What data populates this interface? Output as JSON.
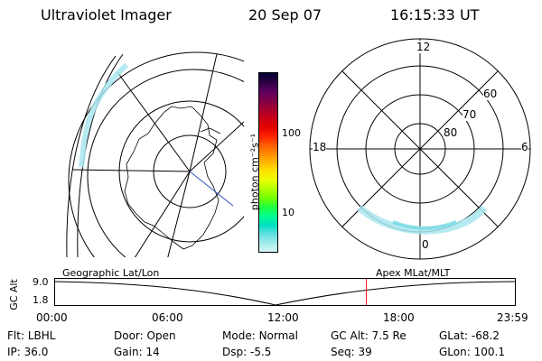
{
  "header": {
    "title": "Ultraviolet Imager",
    "date": "20 Sep 07",
    "time": "16:15:33 UT"
  },
  "colorbar": {
    "label": "photon cm⁻²s⁻¹",
    "ticks": [
      "100",
      "10"
    ],
    "colors": [
      "#000033",
      "#2a0040",
      "#5a0060",
      "#7d004a",
      "#a00030",
      "#c80018",
      "#e00000",
      "#ff2000",
      "#ff5a00",
      "#ff8a00",
      "#ffb800",
      "#ffe400",
      "#e8ff00",
      "#b0ff00",
      "#70ff00",
      "#20ff40",
      "#00ff90",
      "#00e0c0",
      "#60e0e0",
      "#a0eaea",
      "#d4f4f4"
    ]
  },
  "left_map": {
    "projection_label": "Geographic Lat/Lon"
  },
  "right_map": {
    "projection_label": "Apex MLat/MLT",
    "mlt_labels": [
      "12",
      "18",
      "6",
      "0"
    ],
    "lat_labels": [
      "60",
      "70",
      "80"
    ]
  },
  "timeline": {
    "y_label": "GC Alt",
    "y_ticks": [
      "9.0",
      "1.8"
    ],
    "x_ticks": [
      "00:00",
      "06:00",
      "12:00",
      "18:00",
      "23:59"
    ],
    "current_time_fraction": 0.677
  },
  "footer": {
    "row1": [
      {
        "label": "Flt:",
        "value": "LBHL"
      },
      {
        "label": "Door:",
        "value": "Open"
      },
      {
        "label": "Mode:",
        "value": "Normal"
      },
      {
        "label": "GC Alt:",
        "value": "7.5 Re"
      },
      {
        "label": "GLat:",
        "value": "-68.2"
      }
    ],
    "row2": [
      {
        "label": "IP:",
        "value": "36.0"
      },
      {
        "label": "Gain:",
        "value": "14"
      },
      {
        "label": "Dsp:",
        "value": "-5.5"
      },
      {
        "label": "Seq:",
        "value": "39"
      },
      {
        "label": "GLon:",
        "value": "100.1"
      }
    ]
  }
}
